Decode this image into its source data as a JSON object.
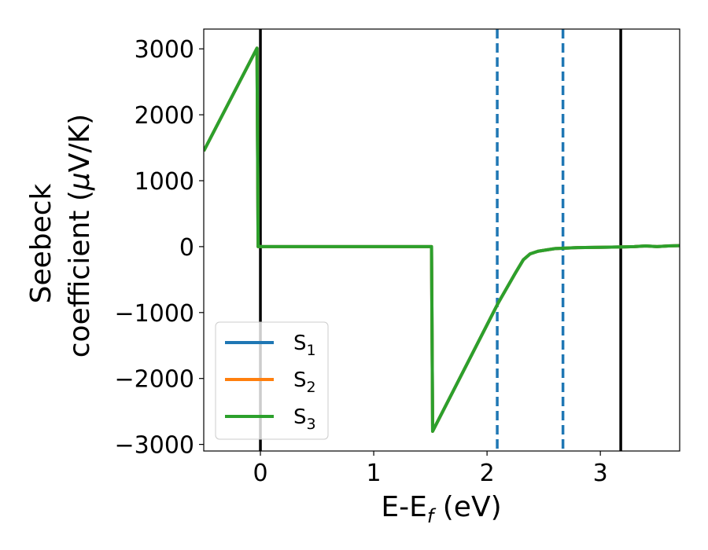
{
  "chart_data": {
    "type": "line",
    "title": "",
    "xlabel": {
      "main": "E-E",
      "sub": "f",
      "suffix": " (eV)"
    },
    "ylabel": {
      "line1": "Seebeck",
      "line2_prefix": "coefficient  (",
      "mu": "μ",
      "line2_suffix": "V/K)"
    },
    "xlim": [
      -0.5,
      3.7
    ],
    "ylim": [
      -3100,
      3300
    ],
    "x_ticks": [
      0,
      1,
      2,
      3
    ],
    "x_tick_labels": [
      "0",
      "1",
      "2",
      "3"
    ],
    "y_ticks": [
      3000,
      2000,
      1000,
      0,
      -1000,
      -2000,
      -3000
    ],
    "y_tick_labels": [
      "3000",
      "2000",
      "1000",
      "0",
      "−1000",
      "−2000",
      "−3000"
    ],
    "grid": false,
    "legend_position": "lower-left",
    "series": [
      {
        "name": "S",
        "sub": "1",
        "color": "#1f77b4",
        "x": [
          -0.5,
          -0.03,
          -0.02,
          1.51,
          1.52,
          2.1,
          2.25,
          2.32,
          2.38,
          2.45,
          2.6,
          2.8,
          3.0,
          3.2,
          3.3,
          3.4,
          3.5,
          3.6,
          3.7
        ],
        "y": [
          1450,
          3010,
          0,
          0,
          -2800,
          -850,
          -400,
          -200,
          -110,
          -70,
          -30,
          -15,
          -10,
          -5,
          0,
          10,
          0,
          10,
          15
        ]
      },
      {
        "name": "S",
        "sub": "2",
        "color": "#ff7f0e",
        "x": [
          -0.5,
          -0.03,
          -0.02,
          1.51,
          1.52,
          2.1,
          2.25,
          2.32,
          2.38,
          2.45,
          2.6,
          2.8,
          3.0,
          3.2,
          3.3,
          3.4,
          3.5,
          3.6,
          3.7
        ],
        "y": [
          1450,
          3010,
          0,
          0,
          -2800,
          -850,
          -400,
          -200,
          -110,
          -70,
          -30,
          -15,
          -10,
          -5,
          0,
          10,
          0,
          10,
          15
        ]
      },
      {
        "name": "S",
        "sub": "3",
        "color": "#2ca02c",
        "x": [
          -0.5,
          -0.03,
          -0.02,
          1.51,
          1.52,
          2.1,
          2.25,
          2.32,
          2.38,
          2.45,
          2.6,
          2.8,
          3.0,
          3.2,
          3.3,
          3.4,
          3.5,
          3.6,
          3.7
        ],
        "y": [
          1450,
          3010,
          0,
          0,
          -2800,
          -850,
          -400,
          -200,
          -110,
          -70,
          -30,
          -15,
          -10,
          -5,
          0,
          10,
          0,
          10,
          15
        ]
      }
    ],
    "vertical_lines": [
      {
        "x": 0.0,
        "style": "solid",
        "color": "#000000"
      },
      {
        "x": 2.09,
        "style": "dashed",
        "color": "#1f77b4"
      },
      {
        "x": 2.67,
        "style": "dashed",
        "color": "#1f77b4"
      },
      {
        "x": 3.18,
        "style": "solid",
        "color": "#000000"
      }
    ]
  }
}
